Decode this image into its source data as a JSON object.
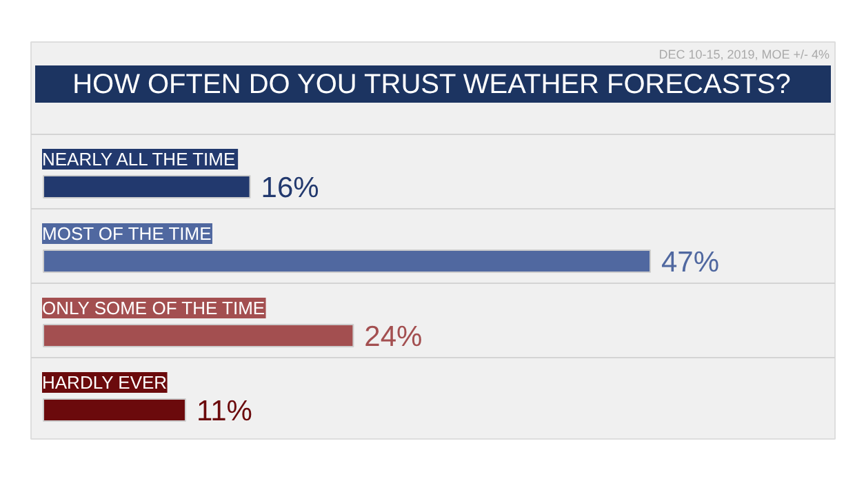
{
  "chart_data": {
    "type": "bar",
    "orientation": "horizontal",
    "title": "HOW OFTEN DO YOU TRUST WEATHER FORECASTS?",
    "annotations": [
      "DEC 10-15, 2019, MOE +/- 4%"
    ],
    "categories": [
      "NEARLY ALL THE TIME",
      "MOST OF THE TIME",
      "ONLY SOME OF THE TIME",
      "HARDLY EVER"
    ],
    "values": [
      16,
      47,
      24,
      11
    ],
    "colors": [
      "#22396e",
      "#5068a0",
      "#a34f50",
      "#6b0a0c"
    ],
    "value_labels": [
      "16%",
      "47%",
      "24%",
      "11%"
    ]
  }
}
